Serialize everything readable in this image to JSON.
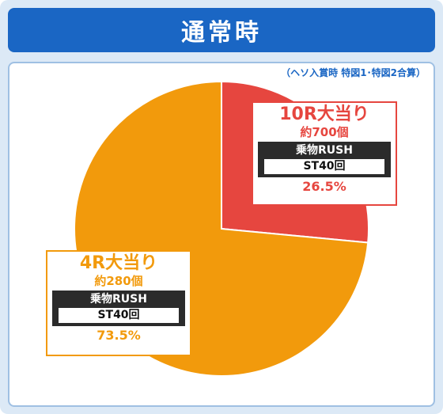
{
  "header": {
    "title": "通常時"
  },
  "note": "（ヘソ入賞時 特図1･特図2合算）",
  "colors": {
    "red": "#e6463f",
    "orange": "#f29a0c",
    "blue": "#1a66c4"
  },
  "chart_data": {
    "type": "pie",
    "title": "",
    "slices": [
      {
        "label": "10R大当り",
        "sub": "約700個",
        "mode": "乗物RUSH",
        "st": "ST40回",
        "value": 26.5,
        "value_label": "26.5%",
        "color": "#e6463f"
      },
      {
        "label": "4R大当り",
        "sub": "約280個",
        "mode": "乗物RUSH",
        "st": "ST40回",
        "value": 73.5,
        "value_label": "73.5%",
        "color": "#f29a0c"
      }
    ]
  }
}
